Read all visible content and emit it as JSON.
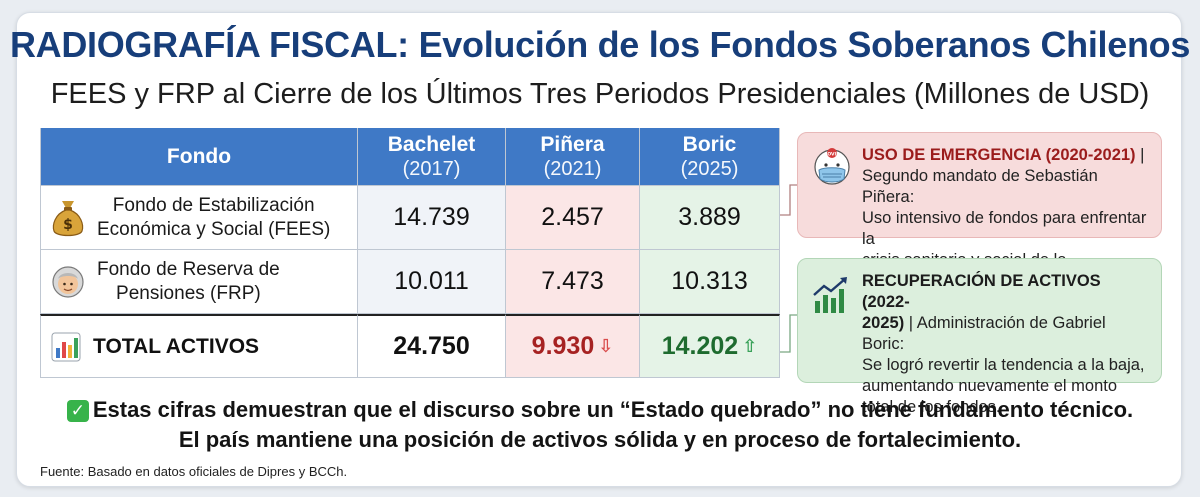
{
  "title": "RADIOGRAFÍA FISCAL: Evolución de los Fondos Soberanos Chilenos",
  "subtitle": "FEES y FRP al Cierre de los Últimos Tres Periodos Presidenciales (Millones de USD)",
  "table": {
    "header": {
      "fondo": "Fondo",
      "bachelet": "Bachelet",
      "bachelet_year": "(2017)",
      "pinera": "Piñera",
      "pinera_year": "(2021)",
      "boric": "Boric",
      "boric_year": "(2025)"
    },
    "rows": [
      {
        "icon": "money-bag-icon",
        "fund_line1": "Fondo de Estabilización",
        "fund_line2": "Económica y Social (FEES)",
        "bachelet": "14.739",
        "pinera": "2.457",
        "boric": "3.889"
      },
      {
        "icon": "elderly-person-icon",
        "fund_line1": "Fondo de Reserva de",
        "fund_line2": "Pensiones (FRP)",
        "bachelet": "10.011",
        "pinera": "7.473",
        "boric": "10.313"
      }
    ],
    "total": {
      "icon": "bar-chart-icon",
      "label": "TOTAL ACTIVOS",
      "bachelet": "24.750",
      "pinera": "9.930",
      "pinera_trend": "down",
      "boric": "14.202",
      "boric_trend": "up"
    }
  },
  "notes": {
    "emergency": {
      "icon": "covid-mask-icon",
      "icon_label": "COVID",
      "heading": "USO DE EMERGENCIA (2020-2021)",
      "body_line1": "Segundo mandato de Sebastián Piñera:",
      "body_line2": "Uso intensivo de fondos para enfrentar la",
      "body_line3": "crisis sanitaria y social de la pandemia."
    },
    "recovery": {
      "icon": "rising-chart-icon",
      "heading_line1": "RECUPERACIÓN DE ACTIVOS (2022-",
      "heading_line2": "2025)",
      "body_inline": "Administración de Gabriel Boric:",
      "body_line2": "Se logró revertir la tendencia a la baja,",
      "body_line3": "aumentando nuevamente el monto",
      "body_line4": "total de los fondos."
    }
  },
  "conclusion": {
    "line1": "Estas cifras demuestran que el discurso sobre un “Estado quebrado” no tiene fundamento técnico.",
    "line2": "El país mantiene una posición de activos sólida y en proceso de fortalecimiento."
  },
  "source": "Fuente: Basado en datos oficiales de Dipres y BCCh.",
  "colors": {
    "title": "#173e7a",
    "header_bg": "#3f79c6",
    "red_bg": "#fbe6e6",
    "green_bg": "#e5f3e7",
    "down": "#a62222",
    "up": "#1e6b2f"
  }
}
